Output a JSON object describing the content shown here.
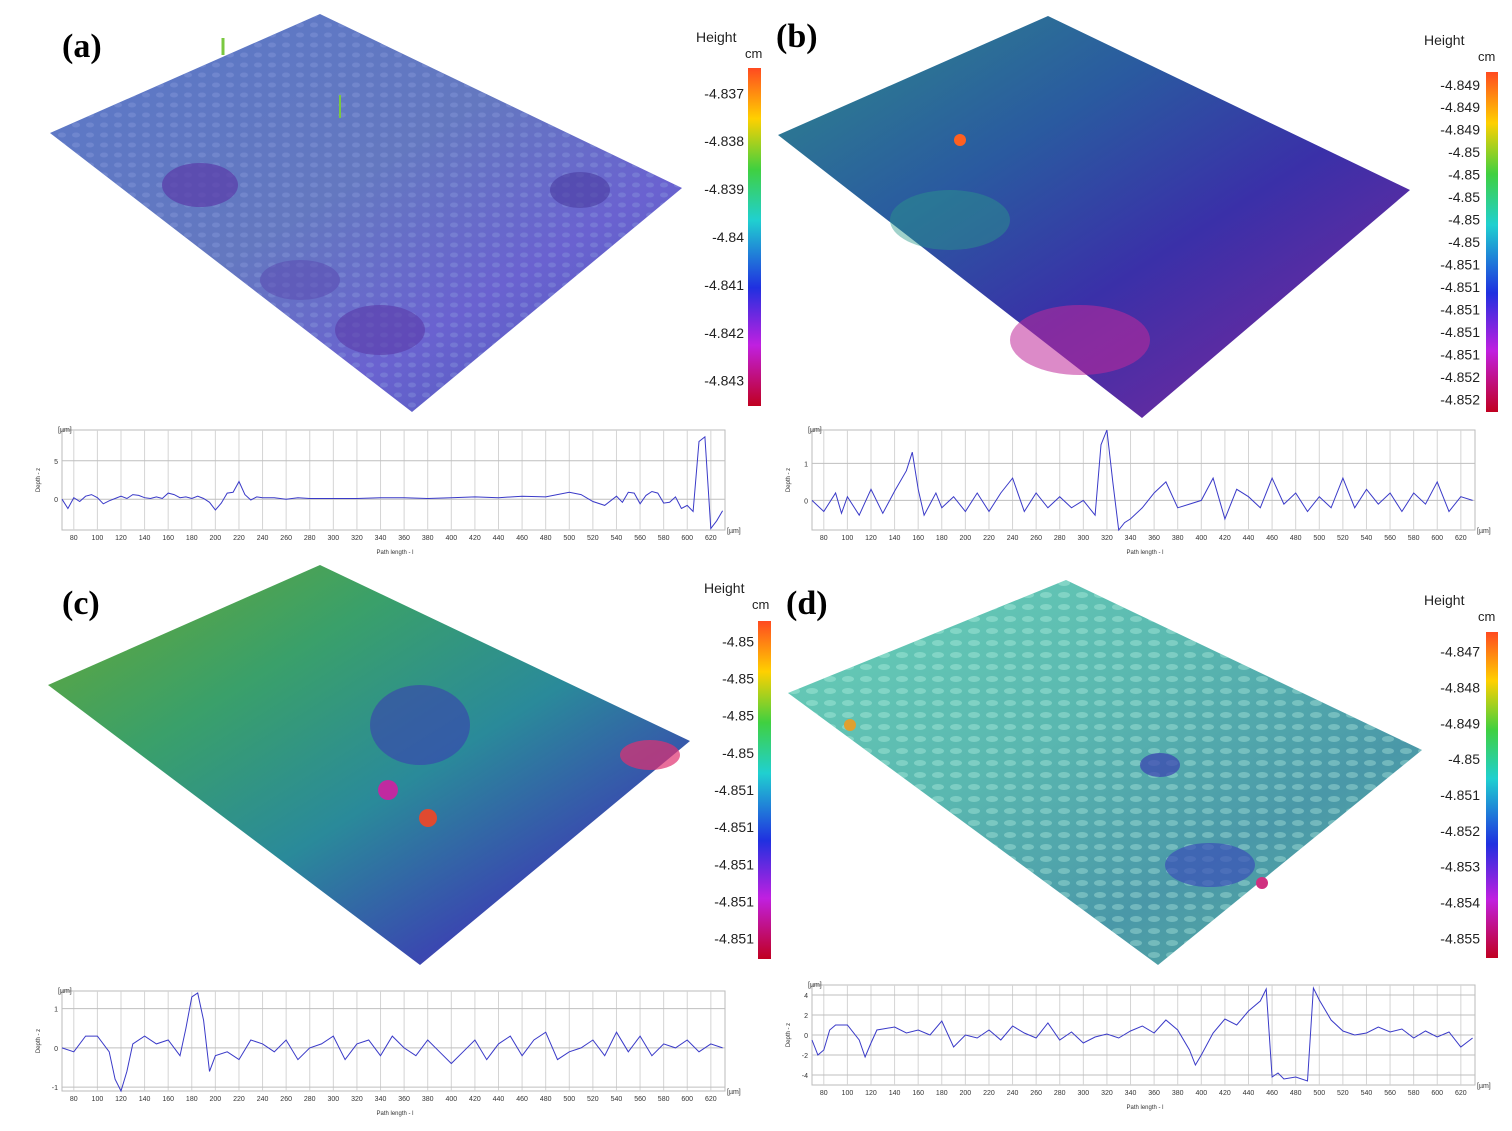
{
  "panels": [
    {
      "label": "(a)",
      "height_title": "Height",
      "height_unit": "cm",
      "colorbar_ticks": [
        "-4.837",
        "-4.838",
        "-4.839",
        "-4.84",
        "-4.841",
        "-4.842",
        "-4.843"
      ],
      "surface_colors": [
        "#5a78c8",
        "#6a6ad0",
        "#4a64b8",
        "#7a8cd0"
      ],
      "profile": {
        "y_unit": "[µm]",
        "x_unit": "[µm]",
        "ylabel": "Depth - z",
        "xlabel": "Path length - l",
        "yticks": [
          0,
          5
        ],
        "ylim": [
          -4,
          9
        ],
        "xlim": [
          70,
          632
        ],
        "xticks": [
          80,
          100,
          120,
          140,
          160,
          180,
          200,
          220,
          240,
          260,
          280,
          300,
          320,
          340,
          360,
          380,
          400,
          420,
          440,
          460,
          480,
          500,
          520,
          540,
          560,
          580,
          600,
          620
        ]
      }
    },
    {
      "label": "(b)",
      "height_title": "Height",
      "height_unit": "cm",
      "colorbar_ticks": [
        "-4.849",
        "-4.849",
        "-4.849",
        "-4.85",
        "-4.85",
        "-4.85",
        "-4.85",
        "-4.85",
        "-4.851",
        "-4.851",
        "-4.851",
        "-4.851",
        "-4.851",
        "-4.852",
        "-4.852"
      ],
      "surface_colors": [
        "#2e8a8a",
        "#3a3aa8",
        "#4030a0",
        "#b02a9a"
      ],
      "profile": {
        "y_unit": "[µm]",
        "x_unit": "[µm]",
        "ylabel": "Depth - z",
        "xlabel": "Path length - l",
        "yticks": [
          0,
          1
        ],
        "ylim": [
          -0.8,
          1.9
        ],
        "xlim": [
          70,
          632
        ],
        "xticks": [
          80,
          100,
          120,
          140,
          160,
          180,
          200,
          220,
          240,
          260,
          280,
          300,
          320,
          340,
          360,
          380,
          400,
          420,
          440,
          460,
          480,
          500,
          520,
          540,
          560,
          580,
          600,
          620
        ]
      }
    },
    {
      "label": "(c)",
      "height_title": "Height",
      "height_unit": "cm",
      "colorbar_ticks": [
        "-4.85",
        "-4.85",
        "-4.85",
        "-4.85",
        "-4.851",
        "-4.851",
        "-4.851",
        "-4.851",
        "-4.851"
      ],
      "surface_colors": [
        "#5aa040",
        "#2a9a7a",
        "#3a50b0",
        "#c02a80"
      ],
      "profile": {
        "y_unit": "[µm]",
        "x_unit": "[µm]",
        "ylabel": "Depth - z",
        "xlabel": "Path length - l",
        "yticks": [
          -1,
          0,
          1
        ],
        "ylim": [
          -1.1,
          1.45
        ],
        "xlim": [
          70,
          632
        ],
        "xticks": [
          80,
          100,
          120,
          140,
          160,
          180,
          200,
          220,
          240,
          260,
          280,
          300,
          320,
          340,
          360,
          380,
          400,
          420,
          440,
          460,
          480,
          500,
          520,
          540,
          560,
          580,
          600,
          620
        ]
      }
    },
    {
      "label": "(d)",
      "height_title": "Height",
      "height_unit": "cm",
      "colorbar_ticks": [
        "-4.847",
        "-4.848",
        "-4.849",
        "-4.85",
        "-4.851",
        "-4.852",
        "-4.853",
        "-4.854",
        "-4.855"
      ],
      "surface_colors": [
        "#5ac8b0",
        "#4aa8a8",
        "#6ad0c0",
        "#3a60b8"
      ],
      "profile": {
        "y_unit": "[µm]",
        "x_unit": "[µm]",
        "ylabel": "Depth - z",
        "xlabel": "Path length - l",
        "yticks": [
          -4,
          -2,
          0,
          2,
          4
        ],
        "ylim": [
          -5,
          5
        ],
        "xlim": [
          70,
          632
        ],
        "xticks": [
          80,
          100,
          120,
          140,
          160,
          180,
          200,
          220,
          240,
          260,
          280,
          300,
          320,
          340,
          360,
          380,
          400,
          420,
          440,
          460,
          480,
          500,
          520,
          540,
          560,
          580,
          600,
          620
        ]
      }
    }
  ],
  "chart_data": [
    {
      "type": "line",
      "panel": "(a)",
      "xlabel": "Path length - l",
      "ylabel": "Depth - z",
      "ylim": [
        -4,
        9
      ],
      "series": [
        {
          "x": [
            70,
            75,
            80,
            85,
            90,
            95,
            100,
            105,
            110,
            115,
            120,
            125,
            130,
            135,
            140,
            145,
            150,
            155,
            160,
            165,
            170,
            175,
            180,
            185,
            190,
            195,
            200,
            205,
            210,
            215,
            220,
            225,
            230,
            235,
            240,
            250,
            260,
            270,
            280,
            290,
            300,
            320,
            340,
            360,
            380,
            400,
            420,
            440,
            460,
            480,
            500,
            510,
            520,
            530,
            540,
            545,
            550,
            555,
            560,
            565,
            570,
            575,
            580,
            585,
            590,
            595,
            600,
            605,
            610,
            615,
            620,
            625,
            630
          ],
          "y": [
            0,
            -1.2,
            0.2,
            -0.3,
            0.4,
            0.6,
            0.2,
            -0.6,
            -0.2,
            0.1,
            0.4,
            0.1,
            0.6,
            0.5,
            0.2,
            0.1,
            0.3,
            0.1,
            0.8,
            0.6,
            0.2,
            0.3,
            0.1,
            0.4,
            0.1,
            -0.4,
            -1.4,
            -0.5,
            0.8,
            0.9,
            2.3,
            0.6,
            -0.1,
            0.3,
            0.2,
            0.2,
            0,
            0.2,
            0.1,
            0.1,
            0.1,
            0.1,
            0.2,
            0.2,
            0.1,
            0.2,
            0.3,
            0.2,
            0.4,
            0.3,
            0.9,
            0.6,
            -0.3,
            -0.8,
            0.4,
            -0.4,
            0.9,
            0.8,
            -0.6,
            0.5,
            1,
            0.8,
            -0.5,
            -0.4,
            0.3,
            -1.2,
            -0.8,
            -1.6,
            7.5,
            8.1,
            -3.8,
            -2.8,
            -1.5
          ]
        }
      ]
    },
    {
      "type": "line",
      "panel": "(b)",
      "xlabel": "Path length - l",
      "ylabel": "Depth - z",
      "ylim": [
        -0.8,
        1.9
      ],
      "series": [
        {
          "x": [
            70,
            80,
            90,
            95,
            100,
            110,
            120,
            130,
            140,
            150,
            155,
            160,
            165,
            170,
            175,
            180,
            190,
            200,
            210,
            220,
            230,
            240,
            250,
            260,
            270,
            280,
            290,
            300,
            310,
            315,
            320,
            325,
            330,
            335,
            340,
            350,
            360,
            370,
            380,
            390,
            400,
            410,
            420,
            430,
            440,
            450,
            460,
            470,
            480,
            490,
            500,
            510,
            520,
            530,
            540,
            550,
            560,
            570,
            580,
            590,
            600,
            610,
            620,
            630
          ],
          "y": [
            0,
            -0.3,
            0.2,
            -0.35,
            0.1,
            -0.4,
            0.3,
            -0.35,
            0.25,
            0.8,
            1.3,
            0.3,
            -0.4,
            -0.1,
            0.2,
            -0.2,
            0.1,
            -0.3,
            0.2,
            -0.3,
            0.2,
            0.6,
            -0.3,
            0.2,
            -0.2,
            0.1,
            -0.2,
            0,
            -0.4,
            1.5,
            1.9,
            0.5,
            -0.8,
            -0.6,
            -0.5,
            -0.2,
            0.2,
            0.5,
            -0.2,
            -0.1,
            0,
            0.6,
            -0.5,
            0.3,
            0.1,
            -0.2,
            0.6,
            -0.1,
            0.2,
            -0.3,
            0.1,
            -0.2,
            0.6,
            -0.2,
            0.3,
            -0.1,
            0.2,
            -0.3,
            0.2,
            -0.1,
            0.5,
            -0.3,
            0.1,
            0
          ]
        }
      ]
    },
    {
      "type": "line",
      "panel": "(c)",
      "xlabel": "Path length - l",
      "ylabel": "Depth - z",
      "ylim": [
        -1.1,
        1.45
      ],
      "series": [
        {
          "x": [
            70,
            80,
            90,
            95,
            100,
            110,
            115,
            120,
            125,
            130,
            140,
            150,
            160,
            170,
            175,
            180,
            185,
            190,
            195,
            200,
            210,
            220,
            230,
            240,
            250,
            260,
            270,
            280,
            290,
            300,
            310,
            320,
            330,
            340,
            350,
            360,
            370,
            380,
            390,
            400,
            410,
            420,
            430,
            440,
            450,
            460,
            470,
            480,
            490,
            500,
            510,
            520,
            530,
            540,
            550,
            560,
            570,
            580,
            590,
            600,
            610,
            620,
            630
          ],
          "y": [
            0,
            -0.1,
            0.3,
            0.3,
            0.3,
            -0.1,
            -0.8,
            -1.1,
            -0.6,
            0.1,
            0.3,
            0.1,
            0.2,
            -0.2,
            0.5,
            1.3,
            1.4,
            0.7,
            -0.6,
            -0.2,
            -0.1,
            -0.3,
            0.2,
            0.1,
            -0.1,
            0.2,
            -0.3,
            0,
            0.1,
            0.3,
            -0.3,
            0.1,
            0.2,
            -0.2,
            0.3,
            0,
            -0.2,
            0.2,
            -0.1,
            -0.4,
            -0.1,
            0.2,
            -0.3,
            0.1,
            0.3,
            -0.2,
            0.2,
            0.4,
            -0.3,
            -0.1,
            0,
            0.2,
            -0.2,
            0.4,
            -0.1,
            0.3,
            -0.2,
            0.1,
            0,
            0.2,
            -0.1,
            0.1,
            0
          ]
        }
      ]
    },
    {
      "type": "line",
      "panel": "(d)",
      "xlabel": "Path length - l",
      "ylabel": "Depth - z",
      "ylim": [
        -5,
        5
      ],
      "series": [
        {
          "x": [
            70,
            75,
            80,
            85,
            90,
            100,
            110,
            115,
            120,
            125,
            130,
            140,
            150,
            160,
            170,
            180,
            190,
            200,
            210,
            220,
            230,
            240,
            250,
            260,
            270,
            280,
            290,
            300,
            310,
            320,
            330,
            340,
            350,
            360,
            370,
            380,
            390,
            395,
            400,
            410,
            420,
            430,
            440,
            450,
            455,
            460,
            465,
            470,
            480,
            490,
            495,
            500,
            505,
            510,
            520,
            530,
            540,
            550,
            560,
            570,
            580,
            590,
            600,
            610,
            620,
            630
          ],
          "y": [
            -0.5,
            -2,
            -1.5,
            0.5,
            1,
            1,
            -0.5,
            -2.2,
            -0.8,
            0.5,
            0.6,
            0.8,
            0.2,
            0.5,
            0,
            1.4,
            -1.2,
            0,
            -0.3,
            0.5,
            -0.5,
            0.9,
            0.2,
            -0.3,
            1.2,
            -0.5,
            0.3,
            -0.8,
            -0.2,
            0.1,
            -0.3,
            0.4,
            0.9,
            0.2,
            1.5,
            0.5,
            -1.5,
            -3,
            -2,
            0.2,
            1.6,
            1,
            2.4,
            3.4,
            4.6,
            -4.2,
            -3.8,
            -4.4,
            -4.2,
            -4.6,
            4.7,
            3.5,
            2.5,
            1.5,
            0.4,
            0,
            0.2,
            0.8,
            0.3,
            0.6,
            -0.3,
            0.4,
            -0.2,
            0.3,
            -1.2,
            -0.3
          ]
        }
      ]
    }
  ]
}
